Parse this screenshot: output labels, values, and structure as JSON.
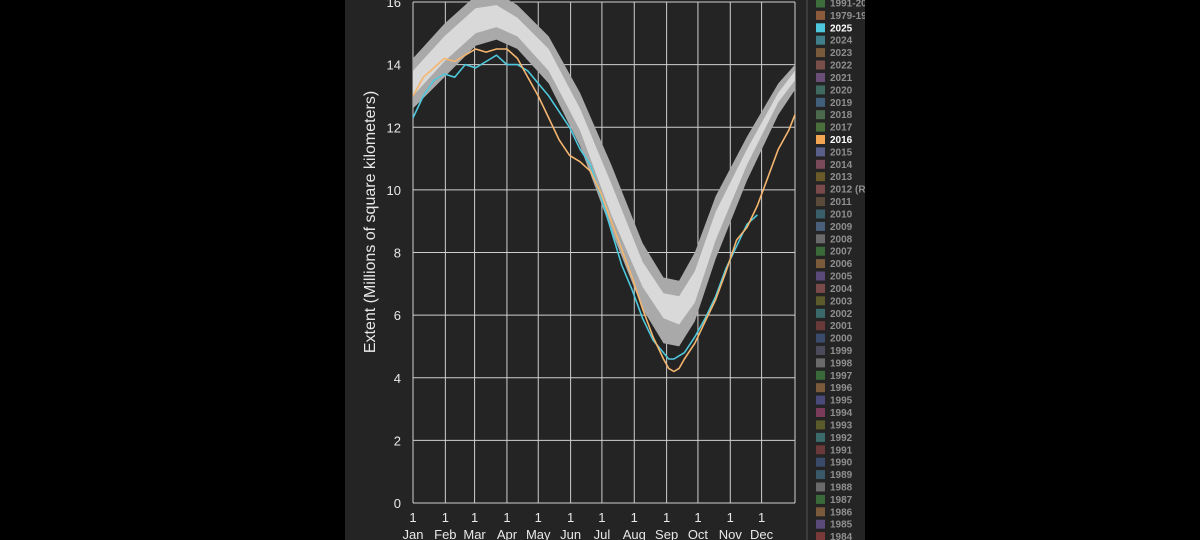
{
  "chart_data": {
    "type": "line",
    "ylabel": "Extent (Millions of square kilometers)",
    "ylim": [
      0,
      16
    ],
    "yticks": [
      "0",
      "2",
      "4",
      "6",
      "8",
      "10",
      "12",
      "14",
      "16"
    ],
    "xlim": [
      0,
      366
    ],
    "month_labels": [
      {
        "x": 0,
        "day": "1",
        "month": "Jan"
      },
      {
        "x": 31,
        "day": "1",
        "month": "Feb"
      },
      {
        "x": 59,
        "day": "1",
        "month": "Mar"
      },
      {
        "x": 90,
        "day": "1",
        "month": "Apr"
      },
      {
        "x": 120,
        "day": "1",
        "month": "May"
      },
      {
        "x": 151,
        "day": "1",
        "month": "Jun"
      },
      {
        "x": 181,
        "day": "1",
        "month": "Jul"
      },
      {
        "x": 212,
        "day": "1",
        "month": "Aug"
      },
      {
        "x": 243,
        "day": "1",
        "month": "Sep"
      },
      {
        "x": 273,
        "day": "1",
        "month": "Oct"
      },
      {
        "x": 304,
        "day": "1",
        "month": "Nov"
      },
      {
        "x": 334,
        "day": "1",
        "month": "Dec"
      }
    ],
    "grid": true,
    "legend_position": "right",
    "bands": [
      {
        "name": "outer range",
        "color": "#a9a9a9",
        "x": [
          0,
          30,
          60,
          80,
          100,
          130,
          160,
          190,
          220,
          240,
          255,
          270,
          290,
          320,
          350,
          366
        ],
        "low": [
          12.6,
          13.6,
          14.6,
          14.8,
          14.5,
          13.4,
          11.4,
          8.7,
          6.2,
          5.1,
          5.0,
          5.8,
          7.8,
          10.3,
          12.4,
          13.2
        ],
        "high": [
          14.2,
          15.3,
          16.2,
          16.3,
          15.9,
          14.9,
          13.1,
          10.8,
          8.3,
          7.2,
          7.1,
          8.0,
          9.8,
          11.7,
          13.4,
          14.0
        ]
      },
      {
        "name": "inner range",
        "color": "#d9d9d9",
        "x": [
          0,
          30,
          60,
          80,
          100,
          130,
          160,
          190,
          220,
          240,
          255,
          270,
          290,
          320,
          350,
          366
        ],
        "low": [
          13.0,
          14.1,
          15.0,
          15.2,
          14.9,
          13.8,
          11.9,
          9.2,
          6.9,
          5.9,
          5.7,
          6.4,
          8.4,
          10.8,
          12.8,
          13.5
        ],
        "high": [
          13.8,
          14.9,
          15.8,
          15.9,
          15.5,
          14.5,
          12.6,
          10.2,
          7.7,
          6.7,
          6.6,
          7.4,
          9.3,
          11.3,
          13.1,
          13.8
        ]
      }
    ],
    "series": [
      {
        "name": "2025",
        "color": "#4ec8dc",
        "x": [
          0,
          10,
          20,
          30,
          40,
          50,
          60,
          70,
          80,
          90,
          100,
          110,
          120,
          130,
          140,
          150,
          160,
          170,
          180,
          190,
          200,
          210,
          220,
          230,
          240,
          245,
          250,
          255,
          260,
          270,
          280,
          290,
          300,
          310,
          320,
          330,
          340
        ],
        "y": [
          12.3,
          13.0,
          13.5,
          13.7,
          13.6,
          14.0,
          13.9,
          14.1,
          14.3,
          14.0,
          14.0,
          13.8,
          13.4,
          13.0,
          12.5,
          12.0,
          11.3,
          10.8,
          9.8,
          8.7,
          7.6,
          6.8,
          5.9,
          5.2,
          4.8,
          4.6,
          4.6,
          4.7,
          4.8,
          5.3,
          5.9,
          6.6,
          7.5,
          8.2,
          8.9,
          9.2,
          null
        ]
      },
      {
        "name": "2016",
        "color": "#f4b56e",
        "x": [
          0,
          10,
          20,
          30,
          40,
          50,
          60,
          70,
          80,
          90,
          100,
          110,
          120,
          130,
          140,
          150,
          160,
          170,
          180,
          190,
          200,
          210,
          220,
          230,
          240,
          245,
          250,
          255,
          260,
          270,
          280,
          290,
          300,
          310,
          320,
          330,
          340,
          350,
          360,
          366
        ],
        "y": [
          13.0,
          13.6,
          13.9,
          14.2,
          14.1,
          14.3,
          14.5,
          14.4,
          14.5,
          14.5,
          14.2,
          13.6,
          13.0,
          12.3,
          11.6,
          11.1,
          10.9,
          10.6,
          9.9,
          9.0,
          8.1,
          7.2,
          6.2,
          5.3,
          4.6,
          4.3,
          4.2,
          4.3,
          4.6,
          5.1,
          5.8,
          6.5,
          7.4,
          8.4,
          8.8,
          9.5,
          10.4,
          11.3,
          11.9,
          12.4
        ]
      }
    ]
  },
  "legend": {
    "items": [
      {
        "label": "1991-20",
        "color": "#3c6e3c",
        "highlight": false
      },
      {
        "label": "1979-19",
        "color": "#8a5a3a",
        "highlight": false
      },
      {
        "label": "2025",
        "color": "#4ec8dc",
        "highlight": true
      },
      {
        "label": "2024",
        "color": "#3f7f89",
        "highlight": false
      },
      {
        "label": "2023",
        "color": "#7a5a3a",
        "highlight": false
      },
      {
        "label": "2022",
        "color": "#7a4f4a",
        "highlight": false
      },
      {
        "label": "2021",
        "color": "#6a4e78",
        "highlight": false
      },
      {
        "label": "2020",
        "color": "#3f6a5f",
        "highlight": false
      },
      {
        "label": "2019",
        "color": "#3f5f7a",
        "highlight": false
      },
      {
        "label": "2018",
        "color": "#4b6a4b",
        "highlight": false
      },
      {
        "label": "2017",
        "color": "#4a6f3a",
        "highlight": false
      },
      {
        "label": "2016",
        "color": "#f4a552",
        "highlight": true
      },
      {
        "label": "2015",
        "color": "#5a5f8a",
        "highlight": false
      },
      {
        "label": "2014",
        "color": "#7a4a5a",
        "highlight": false
      },
      {
        "label": "2013",
        "color": "#6a5a2a",
        "highlight": false
      },
      {
        "label": "2012 (R",
        "color": "#7a4a4a",
        "highlight": false
      },
      {
        "label": "2011",
        "color": "#5a4a3a",
        "highlight": false
      },
      {
        "label": "2010",
        "color": "#3a5f6a",
        "highlight": false
      },
      {
        "label": "2009",
        "color": "#4a5f7a",
        "highlight": false
      },
      {
        "label": "2008",
        "color": "#6a6a6a",
        "highlight": false
      },
      {
        "label": "2007",
        "color": "#3a6a3a",
        "highlight": false
      },
      {
        "label": "2006",
        "color": "#7a5a3a",
        "highlight": false
      },
      {
        "label": "2005",
        "color": "#5a4a7a",
        "highlight": false
      },
      {
        "label": "2004",
        "color": "#7a4a4a",
        "highlight": false
      },
      {
        "label": "2003",
        "color": "#5a5a2a",
        "highlight": false
      },
      {
        "label": "2002",
        "color": "#3a6a6a",
        "highlight": false
      },
      {
        "label": "2001",
        "color": "#6a3a3a",
        "highlight": false
      },
      {
        "label": "2000",
        "color": "#3a4a6a",
        "highlight": false
      },
      {
        "label": "1999",
        "color": "#4a4a5a",
        "highlight": false
      },
      {
        "label": "1998",
        "color": "#6a6a6a",
        "highlight": false
      },
      {
        "label": "1997",
        "color": "#3a6a3a",
        "highlight": false
      },
      {
        "label": "1996",
        "color": "#7a5a3a",
        "highlight": false
      },
      {
        "label": "1995",
        "color": "#4a4a7a",
        "highlight": false
      },
      {
        "label": "1994",
        "color": "#7a3a5a",
        "highlight": false
      },
      {
        "label": "1993",
        "color": "#5a5a2a",
        "highlight": false
      },
      {
        "label": "1992",
        "color": "#3a6a6a",
        "highlight": false
      },
      {
        "label": "1991",
        "color": "#6a3a3a",
        "highlight": false
      },
      {
        "label": "1990",
        "color": "#3a4a6a",
        "highlight": false
      },
      {
        "label": "1989",
        "color": "#3a5a6a",
        "highlight": false
      },
      {
        "label": "1988",
        "color": "#6a6a6a",
        "highlight": false
      },
      {
        "label": "1987",
        "color": "#3a6a3a",
        "highlight": false
      },
      {
        "label": "1986",
        "color": "#7a5a3a",
        "highlight": false
      },
      {
        "label": "1985",
        "color": "#5a4a7a",
        "highlight": false
      },
      {
        "label": "1984",
        "color": "#7a3a3a",
        "highlight": false
      }
    ]
  }
}
